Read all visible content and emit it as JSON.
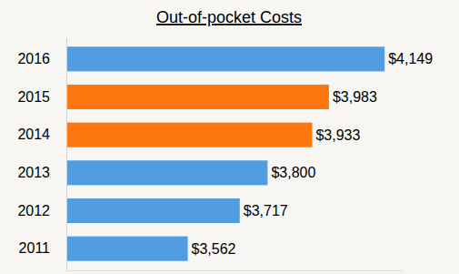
{
  "chart_data": {
    "type": "bar",
    "title": "Out-of-pocket Costs",
    "orientation": "horizontal",
    "categories": [
      "2016",
      "2015",
      "2014",
      "2013",
      "2012",
      "2011"
    ],
    "values": [
      4149,
      3983,
      3933,
      3800,
      3717,
      3562
    ],
    "value_labels": [
      "$4,149",
      "$3,983",
      "$3,933",
      "$3,800",
      "$3,717",
      "$3,562"
    ],
    "colors": [
      "#519ddf",
      "#ff7711",
      "#ff7711",
      "#519ddf",
      "#519ddf",
      "#519ddf"
    ],
    "xlim": [
      3200,
      4200
    ],
    "data_labels": true,
    "tick_labels": "y",
    "grid": false
  }
}
